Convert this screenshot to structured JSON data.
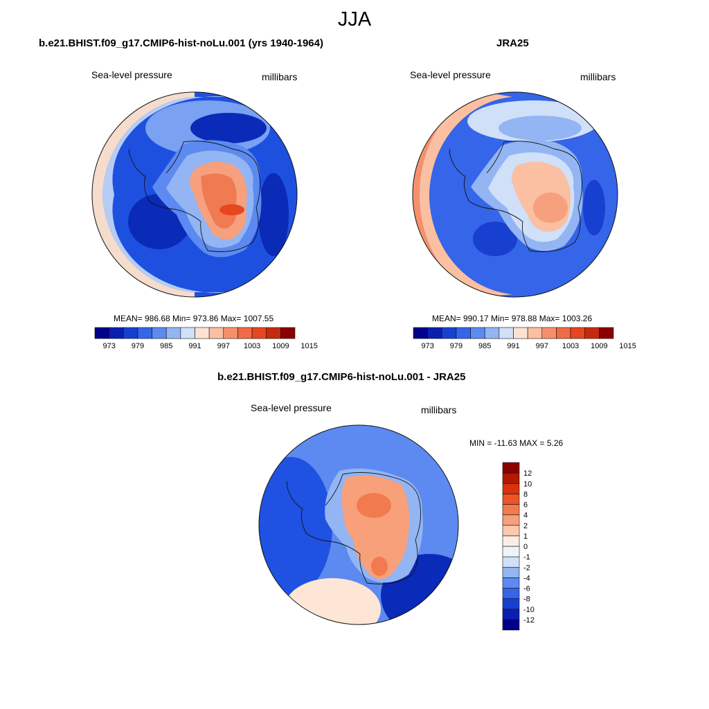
{
  "figure": {
    "season": "JJA"
  },
  "panels": {
    "model": {
      "title": "b.e21.BHIST.f09_g17.CMIP6-hist-noLu.001 (yrs 1940-1964)",
      "variable": "Sea-level pressure",
      "units": "millibars",
      "stats": "MEAN= 986.68  Min= 973.86  Max= 1007.55"
    },
    "obs": {
      "title": "JRA25",
      "variable": "Sea-level pressure",
      "units": "millibars",
      "stats": "MEAN= 990.17  Min= 978.88  Max= 1003.26"
    },
    "diff": {
      "title": "b.e21.BHIST.f09_g17.CMIP6-hist-noLu.001 - JRA25",
      "variable": "Sea-level pressure",
      "units": "millibars",
      "stats": "MIN = -11.63 MAX =   5.26"
    }
  },
  "colorbars": {
    "abs": {
      "colors": [
        "#00008b",
        "#0a1faf",
        "#1840d0",
        "#3565e8",
        "#5c8af0",
        "#93b5f3",
        "#cfe0f8",
        "#fde2d2",
        "#fbbfa2",
        "#f6906c",
        "#f06a45",
        "#e8461f",
        "#c72a0c",
        "#8b0000"
      ],
      "labels": [
        "973",
        "979",
        "985",
        "991",
        "997",
        "1003",
        "1009",
        "1015"
      ]
    },
    "diff": {
      "colors": [
        "#00008b",
        "#0a1faf",
        "#1840d0",
        "#3565e8",
        "#5c8af0",
        "#93b5f3",
        "#cfe0f8",
        "#eef3fb",
        "#fdeee4",
        "#fbc9ad",
        "#f7a07a",
        "#f27a4f",
        "#eb5528",
        "#d9320f",
        "#b01a05",
        "#8b0000"
      ],
      "labels": [
        "12",
        "10",
        "8",
        "6",
        "4",
        "2",
        "1",
        "0",
        "-1",
        "-2",
        "-4",
        "-6",
        "-8",
        "-10",
        "-12"
      ]
    }
  },
  "maps": {
    "model": {
      "background_color": "#1e50e0",
      "rings": [
        {
          "color": "#3c70ec",
          "level": "991"
        },
        {
          "color": "#7aa1f2",
          "level": "993"
        },
        {
          "color": "#b5cdf6",
          "level": "995"
        },
        {
          "color": "#f5dccd",
          "level": "997"
        }
      ],
      "features": [
        {
          "color": "#5c8af0",
          "level": "land-1"
        },
        {
          "color": "#93b5f3",
          "level": "land-2"
        },
        {
          "color": "#f6a07e",
          "level": "high-1"
        },
        {
          "color": "#f07a52",
          "level": "high-2"
        },
        {
          "color": "#e8461f",
          "level": "high-3"
        },
        {
          "color": "#0a2ab8",
          "level": "low"
        }
      ]
    },
    "obs": {
      "background_color": "#3565e8",
      "rings": [
        {
          "color": "#5c8af0",
          "level": "991"
        },
        {
          "color": "#93b5f3",
          "level": "993"
        },
        {
          "color": "#cfe0f8",
          "level": "995"
        },
        {
          "color": "#fbbfa2",
          "level": "997"
        },
        {
          "color": "#f6906c",
          "level": "1001"
        }
      ],
      "features": [
        {
          "color": "#93b5f3",
          "level": "land-1"
        },
        {
          "color": "#cfe0f8",
          "level": "land-2"
        },
        {
          "color": "#fbbfa2",
          "level": "high-1"
        },
        {
          "color": "#f6a07e",
          "level": "high-2"
        },
        {
          "color": "#1840d0",
          "level": "low"
        }
      ]
    },
    "diff": {
      "background_color": "#5c8af0",
      "rings": [],
      "features": [
        {
          "color": "#1f52e2",
          "level": "west-low"
        },
        {
          "color": "#0a2ab8",
          "level": "east-low"
        },
        {
          "color": "#fde6d6",
          "level": "tongue"
        },
        {
          "color": "#f7a07a",
          "level": "high-1"
        },
        {
          "color": "#f27a4f",
          "level": "high-2"
        },
        {
          "color": "#93b5f3",
          "level": "rim"
        }
      ]
    }
  }
}
